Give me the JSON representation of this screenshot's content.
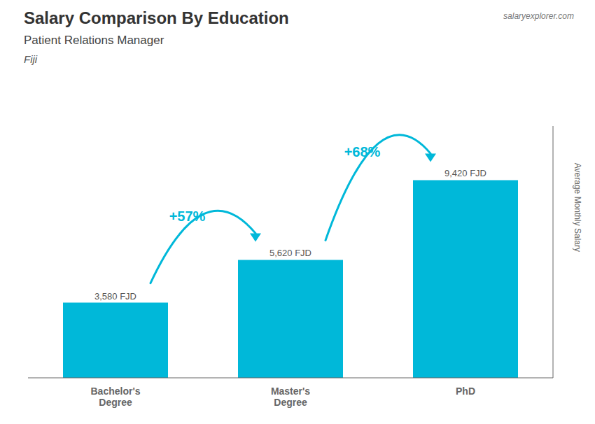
{
  "chart_data": {
    "type": "bar",
    "title": "Salary Comparison By Education",
    "subtitle": "Patient Relations Manager",
    "annotations": [
      "Fiji",
      "salary",
      "explorer.com"
    ],
    "change_labels": [
      "+57%",
      "+68%"
    ],
    "categories": [
      "Bachelor's\nDegree",
      "Master's\nDegree",
      "PhD"
    ],
    "values": [
      3580,
      5620,
      9420
    ],
    "value_labels": [
      "3,580 FJD",
      "5,620 FJD",
      "9,420 FJD"
    ],
    "data_labels": true,
    "color": "#00b8d9",
    "ylim": [
      0,
      12000
    ],
    "ylabel": "Average Monthly Salary",
    "tick_labels": "x",
    "grid": false
  }
}
